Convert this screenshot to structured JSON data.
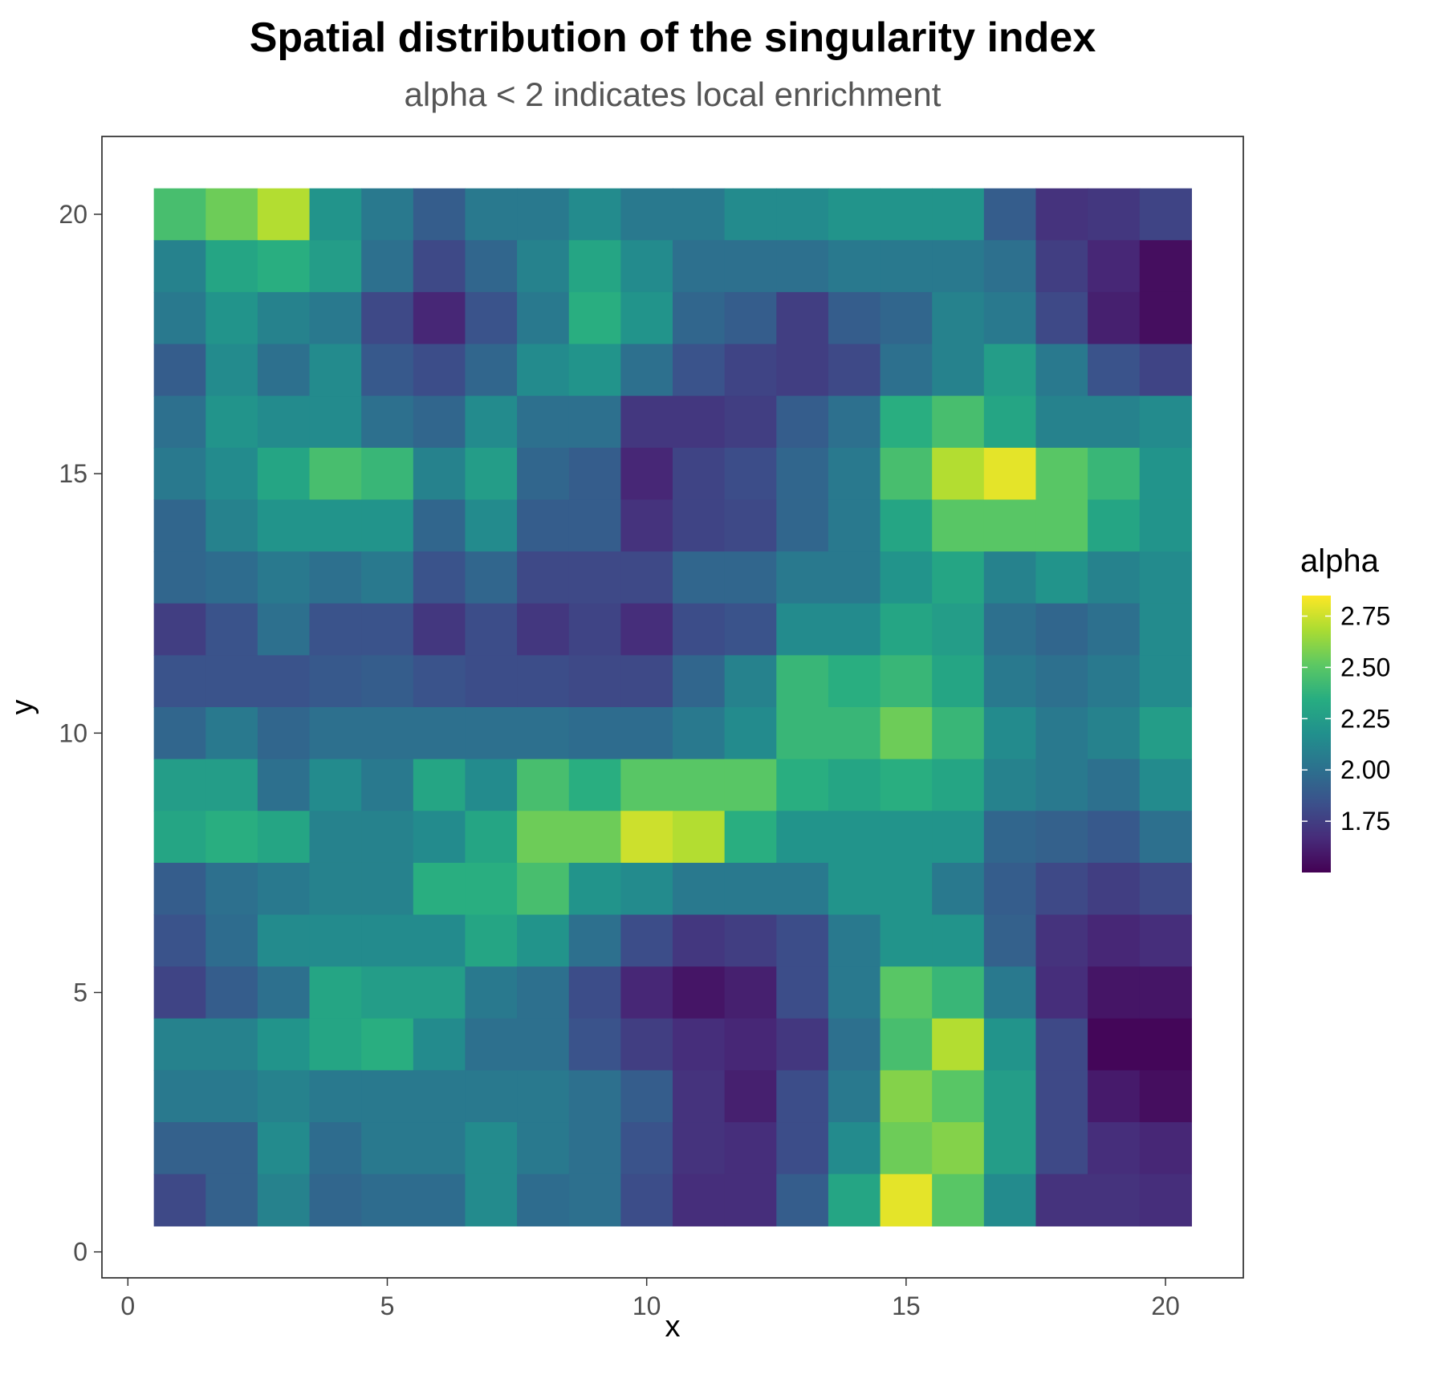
{
  "chart_data": {
    "type": "heatmap",
    "title": "Spatial distribution of the singularity index",
    "subtitle": "alpha < 2 indicates local enrichment",
    "xlabel": "x",
    "ylabel": "y",
    "xlim": [
      -0.5,
      21.5
    ],
    "ylim": [
      -0.5,
      21.5
    ],
    "x_ticks": [
      0,
      5,
      10,
      15,
      20
    ],
    "y_ticks": [
      0,
      5,
      10,
      15,
      20
    ],
    "x": [
      1,
      2,
      3,
      4,
      5,
      6,
      7,
      8,
      9,
      10,
      11,
      12,
      13,
      14,
      15,
      16,
      17,
      18,
      19,
      20
    ],
    "y": [
      20,
      19,
      18,
      17,
      16,
      15,
      14,
      13,
      12,
      11,
      10,
      9,
      8,
      7,
      6,
      5,
      4,
      3,
      2,
      1
    ],
    "values": [
      [
        2.45,
        2.55,
        2.7,
        2.2,
        2.05,
        1.9,
        2.05,
        2.05,
        2.15,
        2.05,
        2.05,
        2.15,
        2.15,
        2.2,
        2.2,
        2.2,
        1.9,
        1.7,
        1.72,
        1.78
      ],
      [
        2.1,
        2.3,
        2.35,
        2.25,
        2.0,
        1.8,
        1.95,
        2.1,
        2.3,
        2.15,
        2.0,
        2.0,
        2.0,
        2.05,
        2.05,
        2.05,
        2.0,
        1.75,
        1.65,
        1.55
      ],
      [
        2.05,
        2.2,
        2.1,
        2.05,
        1.8,
        1.65,
        1.85,
        2.05,
        2.35,
        2.2,
        1.95,
        1.9,
        1.75,
        1.9,
        1.95,
        2.1,
        2.05,
        1.8,
        1.62,
        1.55
      ],
      [
        1.9,
        2.15,
        2.0,
        2.15,
        1.88,
        1.82,
        1.95,
        2.15,
        2.2,
        2.0,
        1.85,
        1.78,
        1.75,
        1.8,
        2.0,
        2.1,
        2.25,
        2.05,
        1.85,
        1.78
      ],
      [
        2.0,
        2.2,
        2.15,
        2.15,
        2.0,
        1.95,
        2.15,
        2.0,
        2.0,
        1.72,
        1.72,
        1.75,
        1.9,
        2.0,
        2.35,
        2.45,
        2.3,
        2.1,
        2.1,
        2.15
      ],
      [
        2.05,
        2.15,
        2.3,
        2.45,
        2.4,
        2.1,
        2.25,
        1.95,
        1.9,
        1.65,
        1.78,
        1.82,
        1.95,
        2.05,
        2.45,
        2.7,
        2.8,
        2.5,
        2.4,
        2.2
      ],
      [
        1.95,
        2.1,
        2.2,
        2.2,
        2.2,
        1.95,
        2.15,
        1.9,
        1.9,
        1.7,
        1.78,
        1.8,
        1.95,
        2.05,
        2.3,
        2.5,
        2.5,
        2.5,
        2.3,
        2.2
      ],
      [
        1.95,
        1.98,
        2.05,
        2.0,
        2.05,
        1.85,
        1.95,
        1.8,
        1.8,
        1.8,
        1.95,
        1.95,
        2.05,
        2.05,
        2.2,
        2.3,
        2.1,
        2.2,
        2.1,
        2.15
      ],
      [
        1.75,
        1.85,
        2.0,
        1.85,
        1.85,
        1.72,
        1.82,
        1.72,
        1.78,
        1.68,
        1.82,
        1.85,
        2.15,
        2.15,
        2.3,
        2.25,
        2.0,
        1.95,
        2.0,
        2.15
      ],
      [
        1.85,
        1.85,
        1.85,
        1.88,
        1.9,
        1.85,
        1.82,
        1.82,
        1.8,
        1.8,
        1.95,
        2.1,
        2.4,
        2.35,
        2.4,
        2.3,
        2.05,
        2.0,
        2.05,
        2.15
      ],
      [
        1.95,
        2.05,
        1.95,
        2.0,
        2.0,
        2.0,
        2.0,
        2.0,
        1.98,
        1.98,
        2.05,
        2.15,
        2.4,
        2.4,
        2.55,
        2.4,
        2.15,
        2.05,
        2.1,
        2.25
      ],
      [
        2.25,
        2.25,
        2.0,
        2.15,
        2.05,
        2.3,
        2.15,
        2.45,
        2.35,
        2.5,
        2.5,
        2.5,
        2.35,
        2.3,
        2.35,
        2.3,
        2.1,
        2.05,
        2.0,
        2.15
      ],
      [
        2.3,
        2.35,
        2.3,
        2.1,
        2.1,
        2.15,
        2.3,
        2.55,
        2.55,
        2.75,
        2.7,
        2.35,
        2.2,
        2.2,
        2.2,
        2.2,
        1.95,
        1.92,
        1.88,
        2.0
      ],
      [
        1.9,
        2.0,
        2.05,
        2.1,
        2.1,
        2.35,
        2.35,
        2.45,
        2.2,
        2.15,
        2.05,
        2.05,
        2.05,
        2.2,
        2.2,
        2.05,
        1.9,
        1.8,
        1.75,
        1.8
      ],
      [
        1.85,
        1.98,
        2.15,
        2.15,
        2.15,
        2.15,
        2.3,
        2.2,
        2.0,
        1.82,
        1.72,
        1.75,
        1.82,
        2.05,
        2.2,
        2.2,
        1.92,
        1.7,
        1.65,
        1.68
      ],
      [
        1.78,
        1.9,
        2.0,
        2.3,
        2.25,
        2.25,
        2.05,
        2.0,
        1.82,
        1.65,
        1.58,
        1.62,
        1.82,
        2.05,
        2.5,
        2.4,
        2.05,
        1.68,
        1.58,
        1.58
      ],
      [
        2.1,
        2.1,
        2.2,
        2.3,
        2.35,
        2.15,
        2.0,
        2.0,
        1.85,
        1.75,
        1.68,
        1.65,
        1.72,
        2.0,
        2.45,
        2.7,
        2.2,
        1.8,
        1.52,
        1.52
      ],
      [
        2.05,
        2.05,
        2.1,
        2.05,
        2.05,
        2.05,
        2.05,
        2.05,
        2.0,
        1.9,
        1.7,
        1.62,
        1.82,
        2.05,
        2.6,
        2.5,
        2.25,
        1.8,
        1.6,
        1.55
      ],
      [
        1.92,
        1.92,
        2.15,
        1.98,
        2.05,
        2.05,
        2.15,
        2.05,
        2.0,
        1.85,
        1.7,
        1.68,
        1.82,
        2.15,
        2.55,
        2.6,
        2.25,
        1.8,
        1.68,
        1.65
      ],
      [
        1.8,
        1.92,
        2.1,
        1.95,
        1.98,
        1.98,
        2.15,
        1.98,
        2.0,
        1.82,
        1.68,
        1.68,
        1.9,
        2.3,
        2.8,
        2.5,
        2.15,
        1.7,
        1.7,
        1.68
      ]
    ],
    "value_range": [
      1.5,
      2.85
    ],
    "colorscale": "viridis",
    "legend": {
      "title": "alpha",
      "placement": "right",
      "ticks": [
        1.75,
        2.0,
        2.25,
        2.5,
        2.75
      ],
      "tick_labels": [
        "1.75",
        "2.00",
        "2.25",
        "2.50",
        "2.75"
      ]
    },
    "grid": false
  }
}
